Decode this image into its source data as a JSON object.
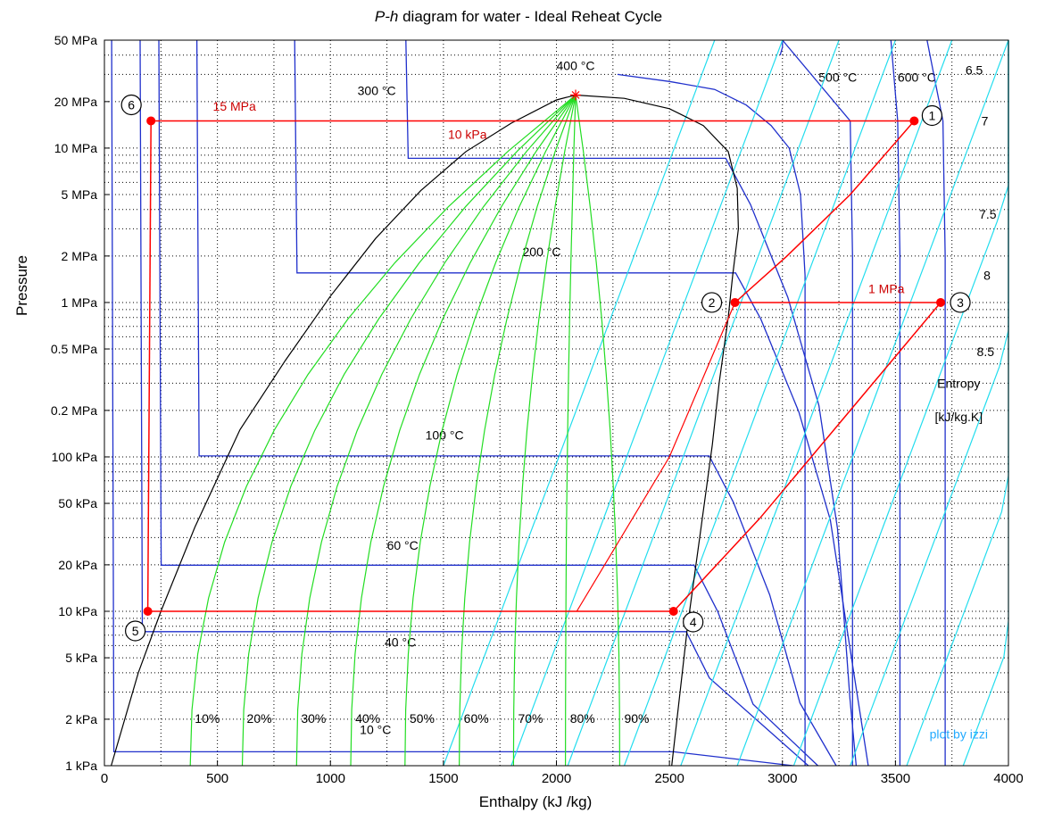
{
  "chart_data": {
    "type": "line",
    "title": "P-h diagram for water - Ideal Reheat Cycle",
    "title_italic": "P-h",
    "title_rest": " diagram for water - Ideal Reheat Cycle",
    "xlabel": "Enthalpy (kJ /kg)",
    "ylabel": "Pressure",
    "x_scale": "linear",
    "y_scale": "log",
    "xlim": [
      0,
      4000
    ],
    "ylim_kPa": [
      1,
      50000
    ],
    "grid": true,
    "x_ticks": [
      {
        "v": 0,
        "label": "0"
      },
      {
        "v": 500,
        "label": "500"
      },
      {
        "v": 1000,
        "label": "1000"
      },
      {
        "v": 1500,
        "label": "1500"
      },
      {
        "v": 2000,
        "label": "2000"
      },
      {
        "v": 2500,
        "label": "2500"
      },
      {
        "v": 3000,
        "label": "3000"
      },
      {
        "v": 3500,
        "label": "3500"
      },
      {
        "v": 4000,
        "label": "4000"
      }
    ],
    "y_ticks": [
      {
        "v": 50000,
        "label": "50 MPa"
      },
      {
        "v": 20000,
        "label": "20 MPa"
      },
      {
        "v": 10000,
        "label": "10 MPa"
      },
      {
        "v": 5000,
        "label": "5 MPa"
      },
      {
        "v": 2000,
        "label": "2 MPa"
      },
      {
        "v": 1000,
        "label": "1 MPa"
      },
      {
        "v": 500,
        "label": "0.5 MPa"
      },
      {
        "v": 200,
        "label": "0.2 MPa"
      },
      {
        "v": 100,
        "label": "100 kPa"
      },
      {
        "v": 50,
        "label": "50 kPa"
      },
      {
        "v": 20,
        "label": "20 kPa"
      },
      {
        "v": 10,
        "label": "10 kPa"
      },
      {
        "v": 5,
        "label": "5 kPa"
      },
      {
        "v": 2,
        "label": "2 kPa"
      },
      {
        "v": 1,
        "label": "1 kPa"
      }
    ],
    "critical_point": {
      "h": 2085,
      "p": 22060
    },
    "saturation_dome": {
      "liquid": [
        [
          30,
          1
        ],
        [
          150,
          4
        ],
        [
          250,
          10
        ],
        [
          400,
          35
        ],
        [
          600,
          150
        ],
        [
          800,
          420
        ],
        [
          1000,
          1100
        ],
        [
          1200,
          2600
        ],
        [
          1400,
          5300
        ],
        [
          1600,
          9500
        ],
        [
          1800,
          14500
        ],
        [
          2000,
          20500
        ],
        [
          2085,
          22060
        ]
      ],
      "vapor": [
        [
          2085,
          22060
        ],
        [
          2300,
          21000
        ],
        [
          2500,
          18000
        ],
        [
          2650,
          14000
        ],
        [
          2760,
          9500
        ],
        [
          2800,
          5500
        ],
        [
          2805,
          3000
        ],
        [
          2780,
          1500
        ],
        [
          2760,
          800
        ],
        [
          2720,
          300
        ],
        [
          2690,
          120
        ],
        [
          2640,
          35
        ],
        [
          2580,
          8
        ],
        [
          2510,
          1
        ]
      ]
    },
    "isotherms": [
      {
        "label": "10 °C",
        "p": 1.23,
        "hf": 42,
        "hg": 2519,
        "label_pos": [
          1130,
          1.6
        ]
      },
      {
        "label": "40 °C",
        "p": 7.38,
        "hf": 168,
        "hg": 2574,
        "label_pos": [
          1240,
          5.9
        ]
      },
      {
        "label": "60 °C",
        "p": 19.9,
        "hf": 251,
        "hg": 2609,
        "label_pos": [
          1250,
          25
        ]
      },
      {
        "label": "100 °C",
        "p": 101.4,
        "hf": 419,
        "hg": 2676,
        "label_pos": [
          1420,
          130
        ]
      },
      {
        "label": "200 °C",
        "p": 1555,
        "hf": 852,
        "hg": 2793,
        "label_pos": [
          1850,
          2000
        ]
      },
      {
        "label": "300 °C",
        "p": 8580,
        "hf": 1344,
        "hg": 2749,
        "label_pos": [
          1120,
          22000
        ]
      }
    ],
    "superheat_isotherms": [
      {
        "label": "400 °C",
        "label_pos": [
          2000,
          32000
        ],
        "points": [
          [
            2270,
            30000
          ],
          [
            2500,
            27000
          ],
          [
            2700,
            24000
          ],
          [
            2840,
            19000
          ],
          [
            2950,
            14000
          ],
          [
            3030,
            10000
          ],
          [
            3080,
            5000
          ],
          [
            3100,
            1500
          ],
          [
            3100,
            1
          ]
        ]
      },
      {
        "label": "500 °C",
        "label_pos": [
          3160,
          27000
        ],
        "points": [
          [
            3000,
            50000
          ],
          [
            3000,
            45000
          ],
          [
            2990,
            40000
          ]
        ]
      },
      {
        "label": "600 °C",
        "label_pos": [
          3510,
          27000
        ],
        "points": [
          [
            3480,
            50000
          ]
        ]
      }
    ],
    "entropy_labels": [
      {
        "label": "6.5",
        "pos": [
          3810,
          30000
        ]
      },
      {
        "label": "7",
        "pos": [
          3880,
          14000
        ]
      },
      {
        "label": "7.5",
        "pos": [
          3870,
          3500
        ]
      },
      {
        "label": "8",
        "pos": [
          3890,
          1400
        ]
      },
      {
        "label": "8.5",
        "pos": [
          3860,
          450
        ]
      }
    ],
    "entropy_axis_label": [
      "Entropy",
      "[kJ/kg.K]"
    ],
    "quality_labels": [
      "10%",
      "20%",
      "30%",
      "40%",
      "50%",
      "60%",
      "70%",
      "80%",
      "90%"
    ],
    "pressure_labels": [
      {
        "label": "15 MPa",
        "pos": [
          480,
          17500
        ]
      },
      {
        "label": "1 MPa",
        "pos": [
          3380,
          1150
        ]
      },
      {
        "label": "10 kPa",
        "pos": [
          1520,
          11500
        ]
      }
    ],
    "cycle_states": [
      {
        "id": "1",
        "h": 3583,
        "p": 15000
      },
      {
        "id": "2",
        "h": 2790,
        "p": 1000
      },
      {
        "id": "3",
        "h": 3700,
        "p": 1000
      },
      {
        "id": "4",
        "h": 2518,
        "p": 10
      },
      {
        "id": "5",
        "h": 192,
        "p": 10
      },
      {
        "id": "6",
        "h": 206,
        "p": 15000
      }
    ],
    "credit": "plot by izzi"
  }
}
